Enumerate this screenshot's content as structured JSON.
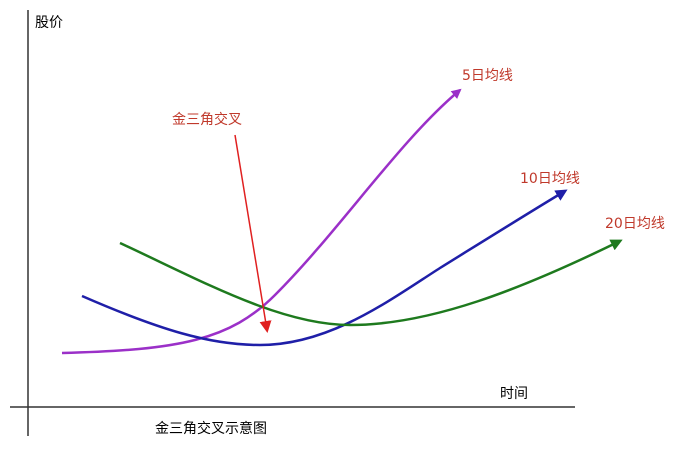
{
  "axis": {
    "y_label": "股价",
    "x_label": "时间"
  },
  "lines": [
    {
      "label": "5日均线"
    },
    {
      "label": "10日均线"
    },
    {
      "label": "20日均线"
    }
  ],
  "annotation": "金三角交叉",
  "caption": "金三角交叉示意图"
}
